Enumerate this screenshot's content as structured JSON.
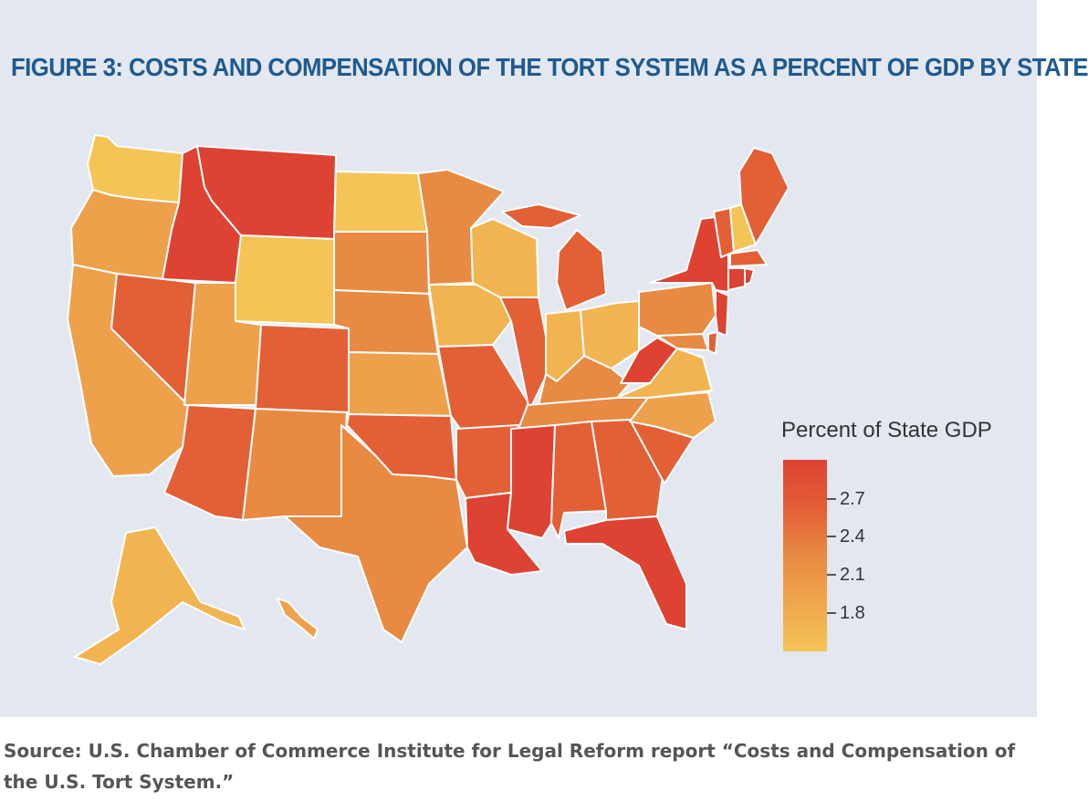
{
  "figure": {
    "title": "FIGURE 3: COSTS AND COMPENSATION OF THE TORT SYSTEM AS A PERCENT OF GDP BY STATE"
  },
  "legend": {
    "title": "Percent of State GDP",
    "ticks": [
      "2.7",
      "2.4",
      "2.1",
      "1.8"
    ],
    "color_high": "#dd4233",
    "color_low": "#f4c456"
  },
  "palette": {
    "red": "#dd4233",
    "red_orange": "#e35f36",
    "orange": "#e88a42",
    "light_orange": "#eea14b",
    "yellow_orange": "#f1b450",
    "yellow": "#f4c456"
  },
  "source": {
    "text": "Source: U.S. Chamber of Commerce Institute for Legal Reform report “Costs and Compensation of the U.S. Tort System.”"
  }
}
